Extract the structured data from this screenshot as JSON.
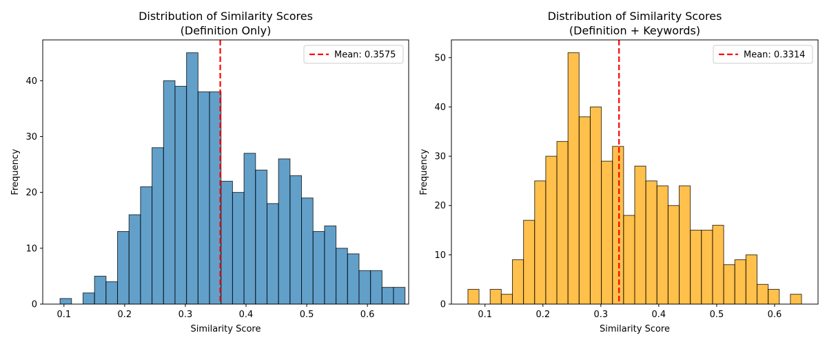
{
  "chart_data": [
    {
      "type": "histogram",
      "title": "Distribution of Similarity Scores",
      "subtitle": "(Definition Only)",
      "xlabel": "Similarity Score",
      "ylabel": "Frequency",
      "xlim": [
        0.065,
        0.668
      ],
      "ylim": [
        0,
        47.3
      ],
      "xticks": [
        0.1,
        0.2,
        0.3,
        0.4,
        0.5,
        0.6
      ],
      "xtick_labels": [
        "0.1",
        "0.2",
        "0.3",
        "0.4",
        "0.5",
        "0.6"
      ],
      "yticks": [
        0,
        10,
        20,
        30,
        40
      ],
      "ytick_labels": [
        "0",
        "10",
        "20",
        "30",
        "40"
      ],
      "bin_start": 0.0935,
      "bin_width": 0.01895,
      "counts": [
        1,
        0,
        2,
        5,
        4,
        13,
        16,
        21,
        28,
        40,
        39,
        45,
        38,
        38,
        22,
        20,
        27,
        24,
        18,
        26,
        23,
        19,
        13,
        14,
        10,
        9,
        6,
        6,
        3,
        3
      ],
      "bar_color": "#1f77b4",
      "mean": 0.3575,
      "legend_label": "Mean: 0.3575",
      "legend_position": "upper right",
      "mean_color": "#ff0000",
      "grid": false
    },
    {
      "type": "histogram",
      "title": "Distribution of Similarity Scores",
      "subtitle": "(Definition + Keywords)",
      "xlabel": "Similarity Score",
      "ylabel": "Frequency",
      "xlim": [
        0.042,
        0.675
      ],
      "ylim": [
        0,
        53.6
      ],
      "xticks": [
        0.1,
        0.2,
        0.3,
        0.4,
        0.5,
        0.6
      ],
      "xtick_labels": [
        "0.1",
        "0.2",
        "0.3",
        "0.4",
        "0.5",
        "0.6"
      ],
      "yticks": [
        0,
        10,
        20,
        30,
        40,
        50
      ],
      "ytick_labels": [
        "0",
        "10",
        "20",
        "30",
        "40",
        "50"
      ],
      "bin_start": 0.0705,
      "bin_width": 0.0192,
      "counts": [
        3,
        0,
        3,
        2,
        9,
        17,
        25,
        30,
        33,
        51,
        38,
        40,
        29,
        32,
        18,
        28,
        25,
        24,
        20,
        24,
        15,
        15,
        16,
        8,
        9,
        10,
        4,
        3,
        0,
        2
      ],
      "bar_color": "#ffa500",
      "mean": 0.3314,
      "legend_label": "Mean: 0.3314",
      "legend_position": "upper right",
      "mean_color": "#ff0000",
      "grid": false
    }
  ]
}
